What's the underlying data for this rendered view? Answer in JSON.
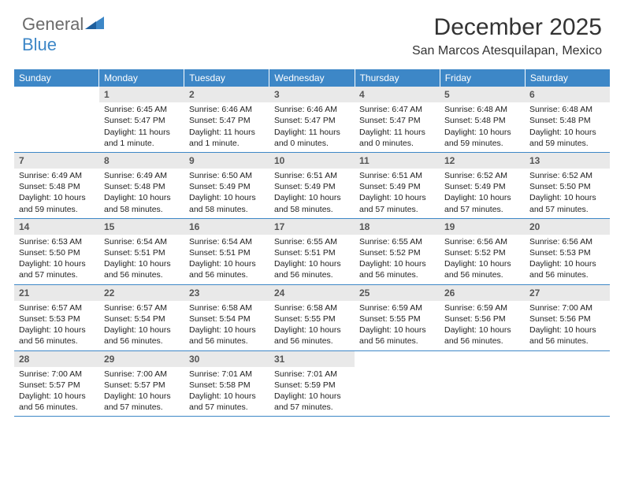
{
  "logo": {
    "general": "General",
    "blue": "Blue"
  },
  "title": "December 2025",
  "location": "San Marcos Atesquilapan, Mexico",
  "colors": {
    "header_band": "#3d87c7",
    "daynum_bg": "#e9e9e9",
    "text": "#333333",
    "logo_gray": "#6b6b6b",
    "logo_blue": "#3d87c7",
    "rule": "#3d87c7"
  },
  "days_of_week": [
    "Sunday",
    "Monday",
    "Tuesday",
    "Wednesday",
    "Thursday",
    "Friday",
    "Saturday"
  ],
  "weeks": [
    [
      {
        "n": "",
        "sr": "",
        "ss": "",
        "dl1": "",
        "dl2": "",
        "empty": true
      },
      {
        "n": "1",
        "sr": "Sunrise: 6:45 AM",
        "ss": "Sunset: 5:47 PM",
        "dl1": "Daylight: 11 hours",
        "dl2": "and 1 minute."
      },
      {
        "n": "2",
        "sr": "Sunrise: 6:46 AM",
        "ss": "Sunset: 5:47 PM",
        "dl1": "Daylight: 11 hours",
        "dl2": "and 1 minute."
      },
      {
        "n": "3",
        "sr": "Sunrise: 6:46 AM",
        "ss": "Sunset: 5:47 PM",
        "dl1": "Daylight: 11 hours",
        "dl2": "and 0 minutes."
      },
      {
        "n": "4",
        "sr": "Sunrise: 6:47 AM",
        "ss": "Sunset: 5:47 PM",
        "dl1": "Daylight: 11 hours",
        "dl2": "and 0 minutes."
      },
      {
        "n": "5",
        "sr": "Sunrise: 6:48 AM",
        "ss": "Sunset: 5:48 PM",
        "dl1": "Daylight: 10 hours",
        "dl2": "and 59 minutes."
      },
      {
        "n": "6",
        "sr": "Sunrise: 6:48 AM",
        "ss": "Sunset: 5:48 PM",
        "dl1": "Daylight: 10 hours",
        "dl2": "and 59 minutes."
      }
    ],
    [
      {
        "n": "7",
        "sr": "Sunrise: 6:49 AM",
        "ss": "Sunset: 5:48 PM",
        "dl1": "Daylight: 10 hours",
        "dl2": "and 59 minutes."
      },
      {
        "n": "8",
        "sr": "Sunrise: 6:49 AM",
        "ss": "Sunset: 5:48 PM",
        "dl1": "Daylight: 10 hours",
        "dl2": "and 58 minutes."
      },
      {
        "n": "9",
        "sr": "Sunrise: 6:50 AM",
        "ss": "Sunset: 5:49 PM",
        "dl1": "Daylight: 10 hours",
        "dl2": "and 58 minutes."
      },
      {
        "n": "10",
        "sr": "Sunrise: 6:51 AM",
        "ss": "Sunset: 5:49 PM",
        "dl1": "Daylight: 10 hours",
        "dl2": "and 58 minutes."
      },
      {
        "n": "11",
        "sr": "Sunrise: 6:51 AM",
        "ss": "Sunset: 5:49 PM",
        "dl1": "Daylight: 10 hours",
        "dl2": "and 57 minutes."
      },
      {
        "n": "12",
        "sr": "Sunrise: 6:52 AM",
        "ss": "Sunset: 5:49 PM",
        "dl1": "Daylight: 10 hours",
        "dl2": "and 57 minutes."
      },
      {
        "n": "13",
        "sr": "Sunrise: 6:52 AM",
        "ss": "Sunset: 5:50 PM",
        "dl1": "Daylight: 10 hours",
        "dl2": "and 57 minutes."
      }
    ],
    [
      {
        "n": "14",
        "sr": "Sunrise: 6:53 AM",
        "ss": "Sunset: 5:50 PM",
        "dl1": "Daylight: 10 hours",
        "dl2": "and 57 minutes."
      },
      {
        "n": "15",
        "sr": "Sunrise: 6:54 AM",
        "ss": "Sunset: 5:51 PM",
        "dl1": "Daylight: 10 hours",
        "dl2": "and 56 minutes."
      },
      {
        "n": "16",
        "sr": "Sunrise: 6:54 AM",
        "ss": "Sunset: 5:51 PM",
        "dl1": "Daylight: 10 hours",
        "dl2": "and 56 minutes."
      },
      {
        "n": "17",
        "sr": "Sunrise: 6:55 AM",
        "ss": "Sunset: 5:51 PM",
        "dl1": "Daylight: 10 hours",
        "dl2": "and 56 minutes."
      },
      {
        "n": "18",
        "sr": "Sunrise: 6:55 AM",
        "ss": "Sunset: 5:52 PM",
        "dl1": "Daylight: 10 hours",
        "dl2": "and 56 minutes."
      },
      {
        "n": "19",
        "sr": "Sunrise: 6:56 AM",
        "ss": "Sunset: 5:52 PM",
        "dl1": "Daylight: 10 hours",
        "dl2": "and 56 minutes."
      },
      {
        "n": "20",
        "sr": "Sunrise: 6:56 AM",
        "ss": "Sunset: 5:53 PM",
        "dl1": "Daylight: 10 hours",
        "dl2": "and 56 minutes."
      }
    ],
    [
      {
        "n": "21",
        "sr": "Sunrise: 6:57 AM",
        "ss": "Sunset: 5:53 PM",
        "dl1": "Daylight: 10 hours",
        "dl2": "and 56 minutes."
      },
      {
        "n": "22",
        "sr": "Sunrise: 6:57 AM",
        "ss": "Sunset: 5:54 PM",
        "dl1": "Daylight: 10 hours",
        "dl2": "and 56 minutes."
      },
      {
        "n": "23",
        "sr": "Sunrise: 6:58 AM",
        "ss": "Sunset: 5:54 PM",
        "dl1": "Daylight: 10 hours",
        "dl2": "and 56 minutes."
      },
      {
        "n": "24",
        "sr": "Sunrise: 6:58 AM",
        "ss": "Sunset: 5:55 PM",
        "dl1": "Daylight: 10 hours",
        "dl2": "and 56 minutes."
      },
      {
        "n": "25",
        "sr": "Sunrise: 6:59 AM",
        "ss": "Sunset: 5:55 PM",
        "dl1": "Daylight: 10 hours",
        "dl2": "and 56 minutes."
      },
      {
        "n": "26",
        "sr": "Sunrise: 6:59 AM",
        "ss": "Sunset: 5:56 PM",
        "dl1": "Daylight: 10 hours",
        "dl2": "and 56 minutes."
      },
      {
        "n": "27",
        "sr": "Sunrise: 7:00 AM",
        "ss": "Sunset: 5:56 PM",
        "dl1": "Daylight: 10 hours",
        "dl2": "and 56 minutes."
      }
    ],
    [
      {
        "n": "28",
        "sr": "Sunrise: 7:00 AM",
        "ss": "Sunset: 5:57 PM",
        "dl1": "Daylight: 10 hours",
        "dl2": "and 56 minutes."
      },
      {
        "n": "29",
        "sr": "Sunrise: 7:00 AM",
        "ss": "Sunset: 5:57 PM",
        "dl1": "Daylight: 10 hours",
        "dl2": "and 57 minutes."
      },
      {
        "n": "30",
        "sr": "Sunrise: 7:01 AM",
        "ss": "Sunset: 5:58 PM",
        "dl1": "Daylight: 10 hours",
        "dl2": "and 57 minutes."
      },
      {
        "n": "31",
        "sr": "Sunrise: 7:01 AM",
        "ss": "Sunset: 5:59 PM",
        "dl1": "Daylight: 10 hours",
        "dl2": "and 57 minutes."
      },
      {
        "n": "",
        "sr": "",
        "ss": "",
        "dl1": "",
        "dl2": "",
        "empty": true
      },
      {
        "n": "",
        "sr": "",
        "ss": "",
        "dl1": "",
        "dl2": "",
        "empty": true
      },
      {
        "n": "",
        "sr": "",
        "ss": "",
        "dl1": "",
        "dl2": "",
        "empty": true
      }
    ]
  ]
}
